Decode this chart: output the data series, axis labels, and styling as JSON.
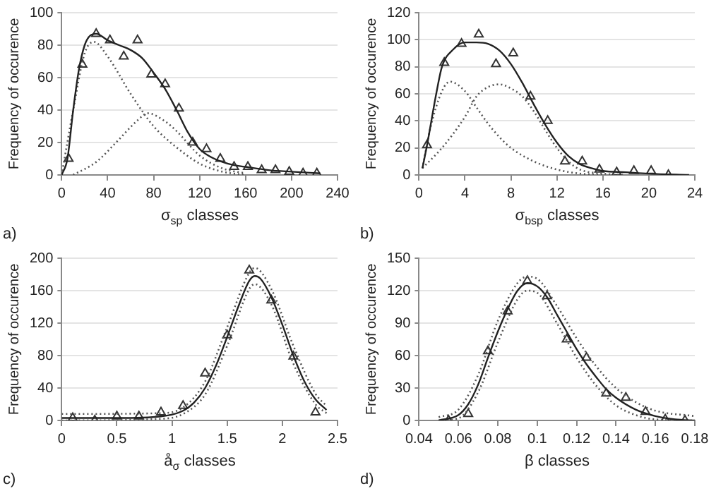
{
  "chart_data": [
    {
      "type": "scatter",
      "xlabel": "σ$_{sp}$ classes",
      "ylabel": "Frequency of occurence",
      "annotations": [
        "a)"
      ],
      "xlim": [
        0,
        240
      ],
      "xticks": [
        0,
        40,
        80,
        120,
        160,
        200,
        240
      ],
      "ylim": [
        0,
        100
      ],
      "yticks": [
        0,
        20,
        40,
        60,
        80,
        100
      ],
      "grid": "y",
      "legend": false,
      "series": [
        {
          "type": "line",
          "color": "#222222",
          "line_style": "solid",
          "x": [
            0,
            5,
            10,
            15,
            20,
            25,
            30,
            40,
            50,
            60,
            70,
            80,
            90,
            100,
            110,
            120,
            130,
            140,
            150,
            160,
            180,
            200,
            225
          ],
          "values": [
            0,
            10,
            40,
            65,
            80,
            86,
            87,
            83,
            80,
            77,
            72,
            63,
            53,
            40,
            26,
            16,
            11,
            8,
            6,
            5,
            3,
            2,
            1
          ]
        },
        {
          "type": "line",
          "color": "#555555",
          "line_style": "dotted",
          "x": [
            0,
            10,
            20,
            28,
            40,
            60,
            80,
            100,
            120,
            140,
            160
          ],
          "values": [
            0,
            40,
            75,
            82,
            73,
            50,
            30,
            17,
            7,
            2,
            0
          ]
        },
        {
          "type": "line",
          "color": "#555555",
          "line_style": "dotted",
          "x": [
            10,
            30,
            50,
            65,
            75,
            90,
            100,
            120,
            140,
            160
          ],
          "values": [
            0,
            8,
            22,
            33,
            38,
            33,
            27,
            12,
            4,
            1
          ]
        },
        {
          "type": "scatter",
          "color": "#333333",
          "marker": "triangle",
          "x": [
            6,
            18,
            30,
            42,
            54,
            66,
            78,
            90,
            102,
            114,
            126,
            138,
            150,
            162,
            174,
            186,
            198,
            210,
            222
          ],
          "values": [
            10,
            68,
            87,
            83,
            73,
            83,
            62,
            56,
            41,
            20,
            16,
            10,
            5,
            5,
            3,
            3,
            2,
            1,
            1
          ]
        }
      ]
    },
    {
      "type": "scatter",
      "xlabel": "σ$_{bsp}$ classes",
      "ylabel": "Frequency of occurence",
      "annotations": [
        "b)"
      ],
      "xlim": [
        0,
        24
      ],
      "xticks": [
        0,
        4,
        8,
        12,
        16,
        20,
        24
      ],
      "ylim": [
        0,
        120
      ],
      "yticks": [
        0,
        20,
        40,
        60,
        80,
        100,
        120
      ],
      "grid": "y",
      "legend": false,
      "series": [
        {
          "type": "line",
          "color": "#222222",
          "line_style": "solid",
          "x": [
            0.3,
            0.7,
            1.5,
            2,
            3,
            4,
            5,
            6,
            7,
            8,
            9,
            10,
            11,
            12,
            13,
            14,
            15,
            16,
            18,
            20,
            23.5
          ],
          "values": [
            5,
            22,
            60,
            80,
            93,
            98,
            98,
            97,
            92,
            82,
            68,
            52,
            37,
            24,
            14,
            8,
            5,
            3,
            2,
            1,
            0
          ]
        },
        {
          "type": "line",
          "color": "#555555",
          "line_style": "dotted",
          "x": [
            0.3,
            1,
            2,
            2.7,
            4,
            5,
            6,
            7,
            8,
            10,
            12,
            14,
            16
          ],
          "values": [
            5,
            35,
            62,
            69,
            62,
            50,
            38,
            28,
            20,
            10,
            4,
            1,
            0
          ]
        },
        {
          "type": "line",
          "color": "#555555",
          "line_style": "dotted",
          "x": [
            0.3,
            2,
            4,
            5,
            6,
            7,
            8,
            9,
            10,
            11,
            12,
            13,
            14,
            16,
            18
          ],
          "values": [
            5,
            20,
            43,
            58,
            65,
            67,
            64,
            58,
            47,
            33,
            20,
            10,
            4,
            1,
            0
          ]
        },
        {
          "type": "scatter",
          "color": "#333333",
          "marker": "triangle",
          "x": [
            0.7,
            2.2,
            3.7,
            5.2,
            6.7,
            8.2,
            9.7,
            11.2,
            12.7,
            14.2,
            15.7,
            17.2,
            18.7,
            20.2,
            21.7
          ],
          "values": [
            22,
            83,
            97,
            104,
            82,
            90,
            58,
            40,
            10,
            10,
            4,
            2,
            3,
            3,
            0
          ]
        }
      ]
    },
    {
      "type": "scatter",
      "xlabel": "å$_{σ}$ classes",
      "ylabel": "Frequency of occurence",
      "annotations": [
        "c)"
      ],
      "xlim": [
        0,
        2.5
      ],
      "xticks": [
        0,
        0.5,
        1,
        1.5,
        2,
        2.5
      ],
      "ylim": [
        0,
        200
      ],
      "yticks": [
        0,
        40,
        80,
        120,
        160,
        200
      ],
      "grid": "y",
      "legend": false,
      "series": [
        {
          "type": "line",
          "color": "#222222",
          "line_style": "solid",
          "x": [
            0,
            0.5,
            0.9,
            1.1,
            1.2,
            1.3,
            1.4,
            1.5,
            1.6,
            1.7,
            1.75,
            1.8,
            1.9,
            2.0,
            2.1,
            2.2,
            2.3,
            2.4
          ],
          "values": [
            3,
            3,
            5,
            12,
            22,
            40,
            68,
            103,
            140,
            172,
            178,
            175,
            152,
            118,
            80,
            48,
            26,
            13
          ]
        },
        {
          "type": "line",
          "color": "#555555",
          "line_style": "dotted",
          "x": [
            0,
            0.9,
            1.1,
            1.3,
            1.5,
            1.7,
            1.75,
            1.9,
            2.1,
            2.3,
            2.4
          ],
          "values": [
            8,
            9,
            16,
            48,
            115,
            182,
            188,
            162,
            92,
            33,
            18
          ]
        },
        {
          "type": "line",
          "color": "#555555",
          "line_style": "dotted",
          "x": [
            0,
            0.9,
            1.1,
            1.3,
            1.5,
            1.7,
            1.75,
            1.9,
            2.1,
            2.3,
            2.4
          ],
          "values": [
            0,
            2,
            8,
            32,
            92,
            162,
            168,
            143,
            70,
            20,
            9
          ]
        },
        {
          "type": "scatter",
          "color": "#333333",
          "marker": "triangle",
          "x": [
            0.1,
            0.3,
            0.5,
            0.7,
            0.9,
            1.1,
            1.3,
            1.5,
            1.7,
            1.9,
            2.1,
            2.3
          ],
          "values": [
            3,
            0,
            5,
            5,
            10,
            18,
            58,
            105,
            185,
            148,
            79,
            10
          ]
        }
      ]
    },
    {
      "type": "scatter",
      "xlabel": "β classes",
      "ylabel": "Frequency of occurence",
      "annotations": [
        "d)"
      ],
      "xlim": [
        0.04,
        0.18
      ],
      "xticks": [
        0.04,
        0.06,
        0.08,
        0.1,
        0.12,
        0.14,
        0.16,
        0.18
      ],
      "ylim": [
        0,
        150
      ],
      "yticks": [
        0,
        30,
        60,
        90,
        120,
        150
      ],
      "grid": "y",
      "legend": false,
      "series": [
        {
          "type": "line",
          "color": "#222222",
          "line_style": "solid",
          "x": [
            0.05,
            0.06,
            0.065,
            0.07,
            0.075,
            0.08,
            0.085,
            0.09,
            0.095,
            0.1,
            0.105,
            0.11,
            0.115,
            0.12,
            0.125,
            0.13,
            0.135,
            0.14,
            0.15,
            0.16,
            0.17,
            0.18
          ],
          "values": [
            0,
            5,
            15,
            33,
            58,
            82,
            103,
            120,
            127,
            124,
            114,
            98,
            82,
            66,
            52,
            40,
            29,
            21,
            10,
            4,
            1,
            0
          ]
        },
        {
          "type": "line",
          "color": "#555555",
          "line_style": "dotted",
          "x": [
            0.05,
            0.06,
            0.07,
            0.08,
            0.09,
            0.095,
            0.1,
            0.11,
            0.12,
            0.13,
            0.14,
            0.15,
            0.16,
            0.18
          ],
          "values": [
            3,
            10,
            42,
            92,
            127,
            133,
            131,
            106,
            76,
            50,
            30,
            17,
            9,
            4
          ]
        },
        {
          "type": "line",
          "color": "#555555",
          "line_style": "dotted",
          "x": [
            0.05,
            0.06,
            0.07,
            0.08,
            0.09,
            0.095,
            0.1,
            0.11,
            0.12,
            0.13,
            0.14,
            0.15,
            0.16,
            0.18
          ],
          "values": [
            0,
            2,
            26,
            72,
            112,
            120,
            118,
            90,
            58,
            32,
            14,
            5,
            1,
            0
          ]
        },
        {
          "type": "scatter",
          "color": "#333333",
          "marker": "triangle",
          "x": [
            0.055,
            0.065,
            0.075,
            0.085,
            0.095,
            0.105,
            0.115,
            0.125,
            0.135,
            0.145,
            0.155,
            0.165,
            0.175
          ],
          "values": [
            0,
            6,
            64,
            101,
            129,
            115,
            75,
            58,
            25,
            21,
            8,
            1,
            0
          ]
        }
      ]
    }
  ]
}
